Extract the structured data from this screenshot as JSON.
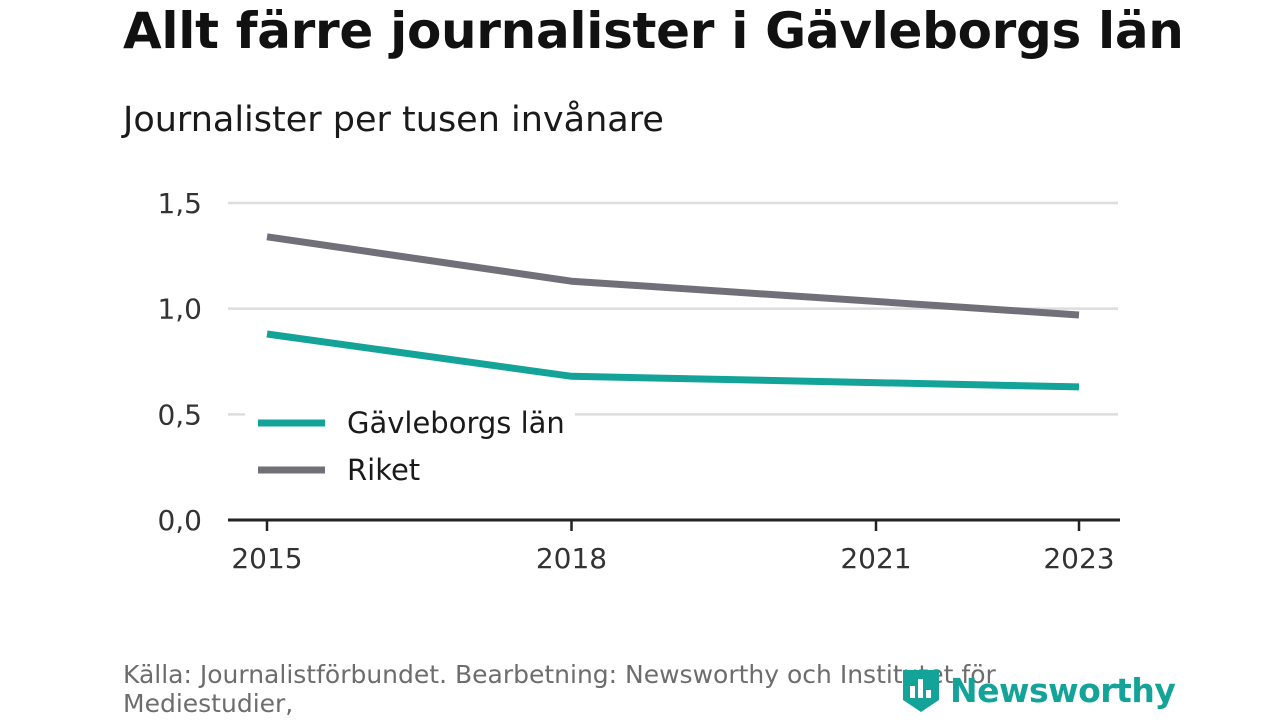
{
  "title": "Allt färre journalister i Gävleborgs län",
  "subtitle": "Journalister per tusen invånare",
  "source": "Källa: Journalistförbundet. Bearbetning: Newsworthy och Institutet för Mediestudier,",
  "logo": {
    "text": "Newsworthy",
    "icon": "newsworthy-logo-icon"
  },
  "colors": {
    "gavleborg": "#14a399",
    "riket": "#717078",
    "grid": "#dddddd",
    "axis": "#222222"
  },
  "chart_data": {
    "type": "line",
    "x": [
      2015,
      2018,
      2021,
      2023
    ],
    "x_points": [
      2015,
      2018,
      2023
    ],
    "x_tick_labels": [
      "2015",
      "2018",
      "2021",
      "2023"
    ],
    "y_tick_labels": [
      "0,0",
      "0,5",
      "1,0",
      "1,5"
    ],
    "y_ticks": [
      0,
      0.5,
      1.0,
      1.5
    ],
    "ylim": [
      0,
      1.5
    ],
    "xlim": [
      2015,
      2023
    ],
    "grid": true,
    "legend_position": "bottom-left",
    "series": [
      {
        "name": "Gävleborgs län",
        "x": [
          2015,
          2018,
          2023
        ],
        "values": [
          0.88,
          0.68,
          0.63
        ],
        "color": "#14a399"
      },
      {
        "name": "Riket",
        "x": [
          2015,
          2018,
          2023
        ],
        "values": [
          1.34,
          1.13,
          0.97
        ],
        "color": "#717078"
      }
    ]
  }
}
